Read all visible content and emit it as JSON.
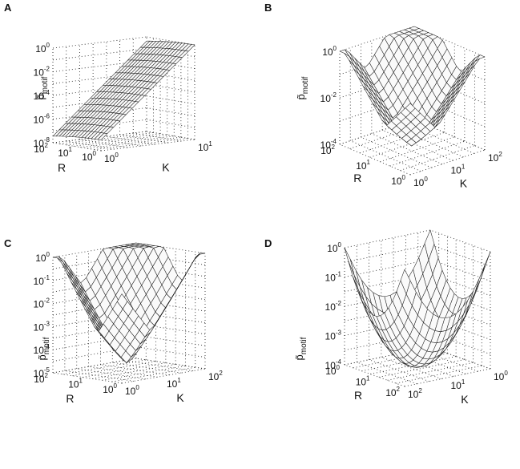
{
  "chart_data": [
    {
      "panel": "A",
      "type": "surface",
      "shape": "decay",
      "zlabel": "p̃",
      "zlabel_sub": "motif",
      "xlabel": "R",
      "ylabel": "K",
      "z_ticks": [
        {
          "base": "10",
          "exp": "0"
        },
        {
          "base": "10",
          "exp": "-2"
        },
        {
          "base": "10",
          "exp": "-4"
        },
        {
          "base": "10",
          "exp": "-6"
        },
        {
          "base": "10",
          "exp": "-8"
        }
      ],
      "z_log": true,
      "zlim": [
        1e-09,
        1
      ],
      "r_ticks": [
        {
          "base": "10",
          "exp": "2"
        },
        {
          "base": "10",
          "exp": "1"
        },
        {
          "base": "10",
          "exp": "0"
        }
      ],
      "k_ticks": [
        {
          "base": "10",
          "exp": "0"
        },
        {
          "base": "10",
          "exp": "1"
        }
      ],
      "rlim": [
        1,
        300
      ],
      "klim": [
        1,
        30
      ]
    },
    {
      "panel": "B",
      "type": "surface",
      "shape": "valley",
      "zlabel": "p̃",
      "zlabel_sub": "motif",
      "xlabel": "R",
      "ylabel": "K",
      "z_ticks": [
        {
          "base": "10",
          "exp": "0"
        },
        {
          "base": "10",
          "exp": "-2"
        },
        {
          "base": "10",
          "exp": "-4"
        }
      ],
      "z_log": true,
      "zlim": [
        3e-05,
        1
      ],
      "r_ticks": [
        {
          "base": "10",
          "exp": "2"
        },
        {
          "base": "10",
          "exp": "1"
        },
        {
          "base": "10",
          "exp": "0"
        }
      ],
      "k_ticks": [
        {
          "base": "10",
          "exp": "0"
        },
        {
          "base": "10",
          "exp": "1"
        },
        {
          "base": "10",
          "exp": "2"
        }
      ],
      "rlim": [
        1,
        300
      ],
      "klim": [
        1,
        300
      ]
    },
    {
      "panel": "C",
      "type": "surface",
      "shape": "valley",
      "zlabel": "p̃",
      "zlabel_sub": "motif",
      "xlabel": "R",
      "ylabel": "K",
      "z_ticks": [
        {
          "base": "10",
          "exp": "0"
        },
        {
          "base": "10",
          "exp": "-1"
        },
        {
          "base": "10",
          "exp": "-2"
        },
        {
          "base": "10",
          "exp": "-3"
        },
        {
          "base": "10",
          "exp": "-4"
        },
        {
          "base": "10",
          "exp": "-5"
        }
      ],
      "z_log": true,
      "zlim": [
        1e-05,
        1
      ],
      "r_ticks": [
        {
          "base": "10",
          "exp": "2"
        },
        {
          "base": "10",
          "exp": "1"
        },
        {
          "base": "10",
          "exp": "0"
        }
      ],
      "k_ticks": [
        {
          "base": "10",
          "exp": "0"
        },
        {
          "base": "10",
          "exp": "1"
        },
        {
          "base": "10",
          "exp": "2"
        }
      ],
      "rlim": [
        1,
        300
      ],
      "klim": [
        1,
        300
      ]
    },
    {
      "panel": "D",
      "type": "surface",
      "shape": "dome",
      "zlabel": "p̃",
      "zlabel_sub": "motif",
      "xlabel": "R",
      "ylabel": "K",
      "z_ticks": [
        {
          "base": "10",
          "exp": "0"
        },
        {
          "base": "10",
          "exp": "-1"
        },
        {
          "base": "10",
          "exp": "-2"
        },
        {
          "base": "10",
          "exp": "-3"
        },
        {
          "base": "10",
          "exp": "-4"
        }
      ],
      "z_log": true,
      "zlim": [
        5e-05,
        1
      ],
      "r_ticks": [
        {
          "base": "10",
          "exp": "0"
        },
        {
          "base": "10",
          "exp": "1"
        },
        {
          "base": "10",
          "exp": "2"
        }
      ],
      "k_ticks": [
        {
          "base": "10",
          "exp": "2"
        },
        {
          "base": "10",
          "exp": "1"
        },
        {
          "base": "10",
          "exp": "0"
        }
      ],
      "rlim": [
        1,
        300
      ],
      "klim": [
        1,
        300
      ]
    }
  ],
  "colors": {
    "mesh_fill": "#fafafa",
    "mesh_edge": "#222222",
    "grid": "#333333",
    "text": "#111111"
  }
}
